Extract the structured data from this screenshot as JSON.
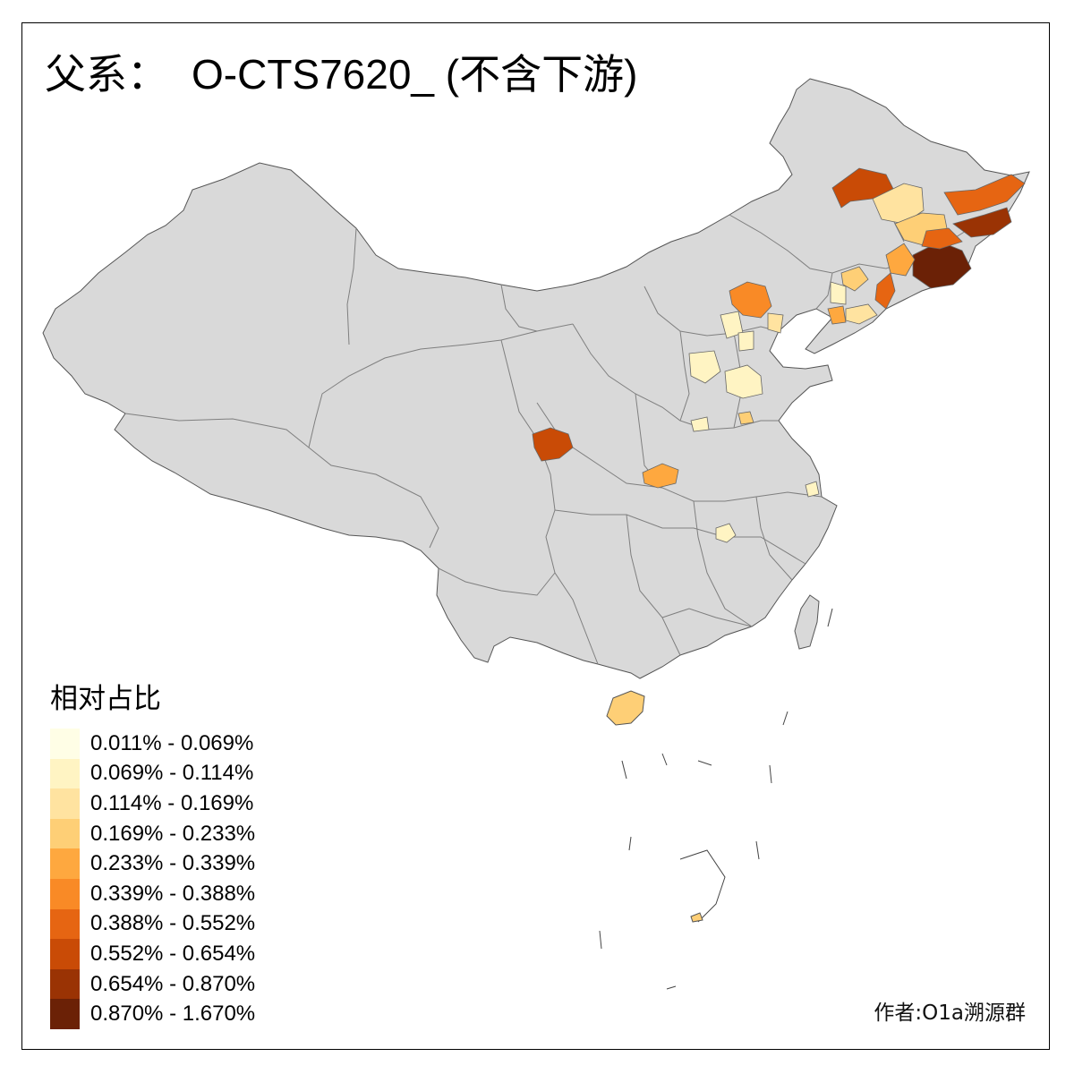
{
  "title": {
    "prefix": "父系：",
    "code": "O-CTS7620_ (不含下游)"
  },
  "legend": {
    "title": "相对占比",
    "items": [
      {
        "label": "0.011% - 0.069%",
        "color": "#FFFEE6"
      },
      {
        "label": "0.069% - 0.114%",
        "color": "#FFF4C3"
      },
      {
        "label": "0.114% - 0.169%",
        "color": "#FFE3A0"
      },
      {
        "label": "0.169% - 0.233%",
        "color": "#FECF76"
      },
      {
        "label": "0.233% - 0.339%",
        "color": "#FEA83F"
      },
      {
        "label": "0.339% - 0.388%",
        "color": "#F98A26"
      },
      {
        "label": "0.388% - 0.552%",
        "color": "#E66512"
      },
      {
        "label": "0.552% - 0.654%",
        "color": "#C94B06"
      },
      {
        "label": "0.654% - 0.870%",
        "color": "#9A3304"
      },
      {
        "label": "0.870% - 1.670%",
        "color": "#6B2106"
      }
    ]
  },
  "map": {
    "base_color": "#D9D9D9",
    "border_color": "#7F7F7F"
  },
  "author": "作者:O1a溯源群"
}
